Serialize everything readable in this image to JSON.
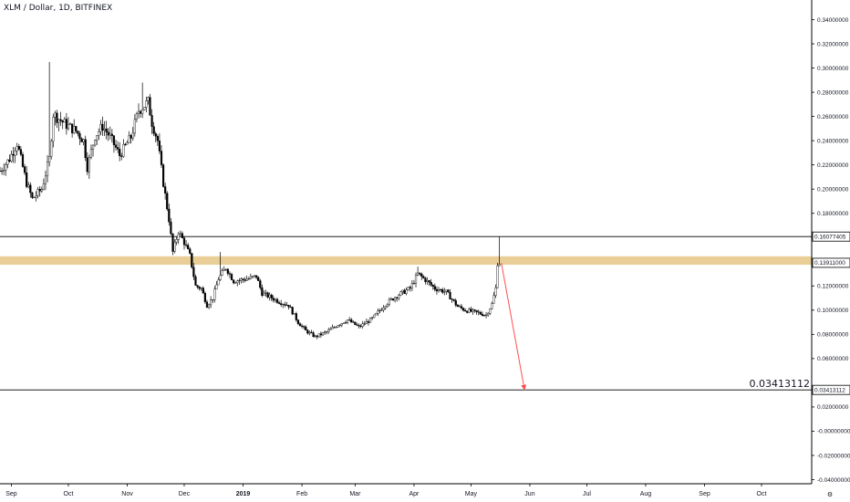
{
  "header": {
    "symbol_line": "XLM / Dollar, 1D, BITFINEX"
  },
  "colors": {
    "candle": "#000000",
    "zone": "#e9cf97",
    "arrow": "#ff4d4d",
    "line": "#000000",
    "axis": "#000000"
  },
  "chart_data": {
    "type": "candlestick",
    "title": "XLM / Dollar, 1D, BITFINEX",
    "ylim": [
      -0.045,
      0.356
    ],
    "y_ticks": [
      "0.34000000",
      "0.32000000",
      "0.30000000",
      "0.28000000",
      "0.26000000",
      "0.24000000",
      "0.22000000",
      "0.20000000",
      "0.18000000",
      "0.12000000",
      "0.10000000",
      "0.08000000",
      "0.06000000",
      "0.02000000",
      "-0.00000000",
      "-0.02000000",
      "-0.04000000"
    ],
    "y_tick_values": [
      0.34,
      0.32,
      0.3,
      0.28,
      0.26,
      0.24,
      0.22,
      0.2,
      0.18,
      0.12,
      0.1,
      0.08,
      0.06,
      0.02,
      0.0,
      -0.02,
      -0.04
    ],
    "x_labels": [
      {
        "label": "Sep",
        "date": "2018-09-01",
        "bold": false
      },
      {
        "label": "Oct",
        "date": "2018-10-01",
        "bold": false
      },
      {
        "label": "Nov",
        "date": "2018-11-01",
        "bold": false
      },
      {
        "label": "Dec",
        "date": "2018-12-01",
        "bold": false
      },
      {
        "label": "2019",
        "date": "2019-01-01",
        "bold": true
      },
      {
        "label": "Feb",
        "date": "2019-02-01",
        "bold": false
      },
      {
        "label": "Mar",
        "date": "2019-03-01",
        "bold": false
      },
      {
        "label": "Apr",
        "date": "2019-04-01",
        "bold": false
      },
      {
        "label": "May",
        "date": "2019-05-01",
        "bold": false
      },
      {
        "label": "Jun",
        "date": "2019-06-01",
        "bold": false
      },
      {
        "label": "Jul",
        "date": "2019-07-01",
        "bold": false
      },
      {
        "label": "Aug",
        "date": "2019-08-01",
        "bold": false
      },
      {
        "label": "Sep",
        "date": "2019-09-01",
        "bold": false
      },
      {
        "label": "Oct",
        "date": "2019-10-01",
        "bold": false
      }
    ],
    "price_path": [
      [
        "2018-08-26",
        0.215
      ],
      [
        "2018-08-31",
        0.225
      ],
      [
        "2018-09-04",
        0.238
      ],
      [
        "2018-09-09",
        0.205
      ],
      [
        "2018-09-12",
        0.192
      ],
      [
        "2018-09-17",
        0.2
      ],
      [
        "2018-09-21",
        0.225
      ],
      [
        "2018-09-23",
        0.262
      ],
      [
        "2018-09-26",
        0.258
      ],
      [
        "2018-09-30",
        0.253
      ],
      [
        "2018-10-05",
        0.248
      ],
      [
        "2018-10-09",
        0.24
      ],
      [
        "2018-10-11",
        0.218
      ],
      [
        "2018-10-15",
        0.244
      ],
      [
        "2018-10-19",
        0.252
      ],
      [
        "2018-10-23",
        0.243
      ],
      [
        "2018-10-28",
        0.228
      ],
      [
        "2018-11-03",
        0.243
      ],
      [
        "2018-11-07",
        0.265
      ],
      [
        "2018-11-12",
        0.272
      ],
      [
        "2018-11-14",
        0.255
      ],
      [
        "2018-11-17",
        0.24
      ],
      [
        "2018-11-20",
        0.205
      ],
      [
        "2018-11-23",
        0.175
      ],
      [
        "2018-11-25",
        0.148
      ],
      [
        "2018-11-28",
        0.165
      ],
      [
        "2018-12-01",
        0.156
      ],
      [
        "2018-12-04",
        0.145
      ],
      [
        "2018-12-07",
        0.12
      ],
      [
        "2018-12-10",
        0.118
      ],
      [
        "2018-12-13",
        0.104
      ],
      [
        "2018-12-16",
        0.11
      ],
      [
        "2018-12-19",
        0.126
      ],
      [
        "2018-12-23",
        0.135
      ],
      [
        "2018-12-27",
        0.124
      ],
      [
        "2018-12-31",
        0.125
      ],
      [
        "2019-01-04",
        0.126
      ],
      [
        "2019-01-08",
        0.128
      ],
      [
        "2019-01-11",
        0.114
      ],
      [
        "2019-01-15",
        0.111
      ],
      [
        "2019-01-20",
        0.107
      ],
      [
        "2019-01-25",
        0.104
      ],
      [
        "2019-01-30",
        0.09
      ],
      [
        "2019-02-03",
        0.083
      ],
      [
        "2019-02-08",
        0.078
      ],
      [
        "2019-02-14",
        0.082
      ],
      [
        "2019-02-20",
        0.088
      ],
      [
        "2019-02-25",
        0.092
      ],
      [
        "2019-03-03",
        0.086
      ],
      [
        "2019-03-10",
        0.093
      ],
      [
        "2019-03-17",
        0.105
      ],
      [
        "2019-03-23",
        0.112
      ],
      [
        "2019-03-30",
        0.118
      ],
      [
        "2019-04-03",
        0.13
      ],
      [
        "2019-04-07",
        0.125
      ],
      [
        "2019-04-12",
        0.118
      ],
      [
        "2019-04-18",
        0.115
      ],
      [
        "2019-04-24",
        0.103
      ],
      [
        "2019-04-28",
        0.1
      ],
      [
        "2019-05-04",
        0.098
      ],
      [
        "2019-05-09",
        0.096
      ],
      [
        "2019-05-12",
        0.105
      ],
      [
        "2019-05-14",
        0.118
      ],
      [
        "2019-05-15",
        0.139
      ],
      [
        "2019-05-16",
        0.139
      ]
    ],
    "spikes": [
      {
        "date": "2018-09-21",
        "high": 0.305
      },
      {
        "date": "2018-11-09",
        "high": 0.288
      },
      {
        "date": "2018-12-20",
        "high": 0.148
      },
      {
        "date": "2019-04-03",
        "high": 0.136
      },
      {
        "date": "2019-05-16",
        "high": 0.16077405
      }
    ],
    "resistance_zone": [
      0.1375,
      0.1445
    ],
    "horizontal_lines": [
      {
        "value": 0.16077405,
        "label": "0.16077405",
        "x_start_date": "2018-08-26"
      },
      {
        "value": 0.03413112,
        "label": "0.03413112",
        "x_start_date": "2018-08-26"
      }
    ],
    "current_price": {
      "value": 0.13911,
      "label": "0.13911000"
    },
    "projection_arrow": {
      "from_date": "2019-05-17",
      "from_value": 0.139,
      "to_date": "2019-05-29",
      "to_value": 0.036
    },
    "target_callout": "0.03413112"
  }
}
